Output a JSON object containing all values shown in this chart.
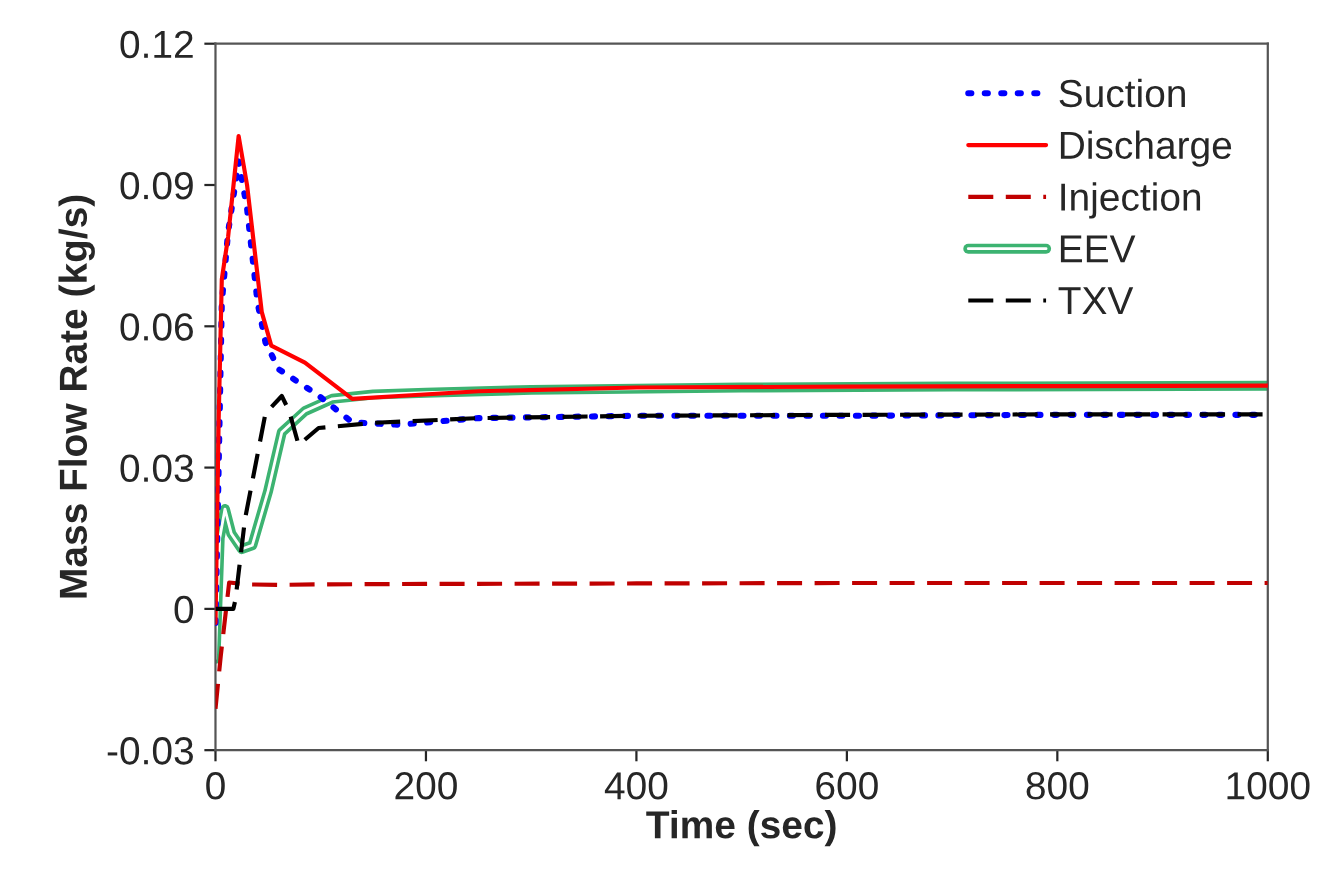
{
  "chart_data": {
    "type": "line",
    "xlabel": "Time (sec)",
    "ylabel": "Mass Flow Rate (kg/s)",
    "xlim": [
      0,
      1000
    ],
    "xticks": [
      0,
      200,
      400,
      600,
      800,
      1000
    ],
    "ylim": [
      -0.03,
      0.12
    ],
    "yticks": [
      {
        "value": -0.03,
        "label": "-0.03"
      },
      {
        "value": 0,
        "label": "0"
      },
      {
        "value": 0.03,
        "label": "0.03"
      },
      {
        "value": 0.06,
        "label": "0.06"
      },
      {
        "value": 0.09,
        "label": "0.09"
      },
      {
        "value": 0.12,
        "label": "0.12"
      }
    ],
    "grid": false,
    "legend": "top right",
    "series": [
      {
        "name": "Suction",
        "color": "#0000ff",
        "line_style": "dotted",
        "x": [
          0,
          3,
          6,
          12,
          22,
          30,
          40,
          47.5,
          60,
          98,
          130,
          174,
          250,
          400,
          600,
          800,
          1000
        ],
        "values": [
          -0.003,
          0.03,
          0.065,
          0.08,
          0.095,
          0.085,
          0.065,
          0.0566,
          0.0509,
          0.0453,
          0.0396,
          0.0391,
          0.0405,
          0.041,
          0.041,
          0.0412,
          0.0412
        ]
      },
      {
        "name": "Discharge",
        "color": "#ff0000",
        "line_style": "solid",
        "x": [
          0,
          3,
          6,
          12,
          22,
          30,
          44,
          53,
          85,
          130,
          174,
          250,
          400,
          600,
          800,
          1000
        ],
        "values": [
          -0.003,
          0.04,
          0.07,
          0.079,
          0.1004,
          0.09,
          0.063,
          0.0559,
          0.0523,
          0.0446,
          0.0452,
          0.0462,
          0.047,
          0.0472,
          0.0473,
          0.0474
        ]
      },
      {
        "name": "Injection",
        "color": "#c00000",
        "line_style": "dashed",
        "x": [
          0,
          5,
          13,
          30,
          60,
          100,
          200,
          400,
          600,
          800,
          1000
        ],
        "values": [
          -0.0212,
          -0.01,
          0.0056,
          0.0052,
          0.0051,
          0.0052,
          0.0053,
          0.0054,
          0.0055,
          0.0055,
          0.0055
        ]
      },
      {
        "name": "EEV",
        "color": "#3cb371",
        "line_style": "solid",
        "x": [
          0,
          4,
          9,
          15,
          25,
          35,
          50,
          63,
          85,
          111,
          150,
          200,
          300,
          500,
          700,
          1000
        ],
        "values": [
          -0.0106,
          0.015,
          0.0212,
          0.016,
          0.0127,
          0.0135,
          0.025,
          0.0375,
          0.042,
          0.0446,
          0.0455,
          0.0459,
          0.0465,
          0.047,
          0.0472,
          0.0474
        ]
      },
      {
        "name": "TXV",
        "color": "#000000",
        "line_style": "dashed",
        "x": [
          0,
          17,
          19,
          28,
          47.5,
          63,
          70,
          79,
          98,
          150,
          250,
          400,
          600,
          800,
          1000
        ],
        "values": [
          0,
          0,
          0.002,
          0.019,
          0.0415,
          0.0452,
          0.042,
          0.0348,
          0.0384,
          0.0395,
          0.0405,
          0.041,
          0.0412,
          0.0413,
          0.0413
        ]
      }
    ]
  }
}
